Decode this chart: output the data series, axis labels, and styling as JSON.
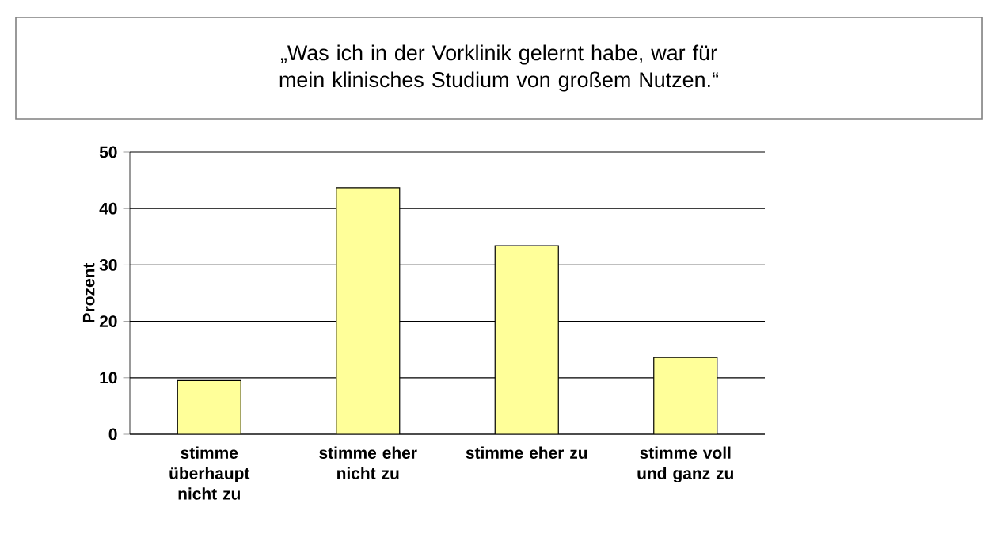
{
  "chart_data": {
    "type": "bar",
    "title": "„Was ich in der Vorklinik gelernt habe, war für mein klinisches Studium von großem Nutzen.“",
    "categories": [
      "stimme überhaupt nicht zu",
      "stimme eher nicht zu",
      "stimme eher zu",
      "stimme voll und ganz zu"
    ],
    "values": [
      9.5,
      43.7,
      33.4,
      13.6
    ],
    "color": "#ffff99",
    "ylabel": "Prozent",
    "ylim": [
      0,
      50
    ],
    "yticks": [
      0,
      10,
      20,
      30,
      40,
      50
    ],
    "grid": "y"
  }
}
